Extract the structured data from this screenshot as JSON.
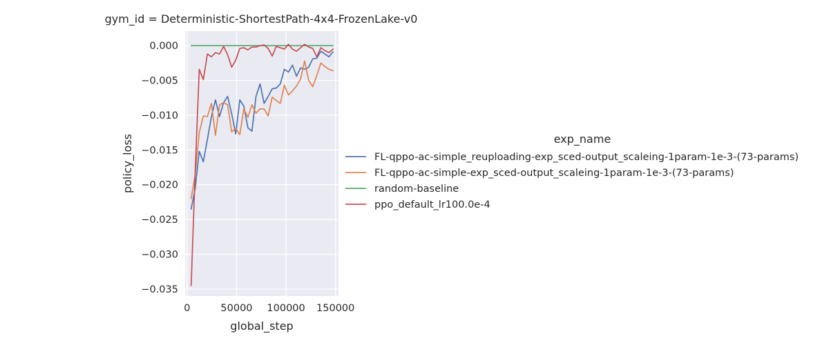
{
  "chart_data": {
    "type": "line",
    "title": "gym_id = Deterministic-ShortestPath-4x4-FrozenLake-v0",
    "xlabel": "global_step",
    "ylabel": "policy_loss",
    "xlim": [
      -2000,
      153000
    ],
    "ylim": [
      -0.036,
      0.0021
    ],
    "xticks": [
      0,
      50000,
      100000,
      150000
    ],
    "xtick_labels": [
      "0",
      "50000",
      "100000",
      "150000"
    ],
    "yticks": [
      0.0,
      -0.005,
      -0.01,
      -0.015,
      -0.02,
      -0.025,
      -0.03,
      -0.035
    ],
    "ytick_labels": [
      "0.000",
      "−0.005",
      "−0.010",
      "−0.015",
      "−0.020",
      "−0.025",
      "−0.030",
      "−0.035"
    ],
    "grid": true,
    "background": "#eaeaf2",
    "legend": {
      "title": "exp_name",
      "placement": "right, outside plot"
    },
    "series": [
      {
        "name": "FL-qppo-ac-simple_reuploading-exp_sced-output_scaleing-1param-1e-3-(73-params)",
        "color": "#4c72b0",
        "x": [
          4096,
          8192,
          12288,
          16384,
          20480,
          24576,
          28672,
          32768,
          36864,
          40960,
          45056,
          49152,
          53248,
          57344,
          61440,
          65536,
          69632,
          73728,
          77824,
          81920,
          86016,
          90112,
          94208,
          98304,
          102400,
          106496,
          110592,
          114688,
          118784,
          122880,
          126976,
          131072,
          135168,
          139264,
          143360,
          147456
        ],
        "y": [
          -0.0235,
          -0.0205,
          -0.0152,
          -0.0167,
          -0.0135,
          -0.0102,
          -0.0078,
          -0.0102,
          -0.0082,
          -0.0073,
          -0.0098,
          -0.0127,
          -0.0078,
          -0.0087,
          -0.0118,
          -0.0123,
          -0.0073,
          -0.0055,
          -0.0083,
          -0.0073,
          -0.0062,
          -0.0061,
          -0.0055,
          -0.0034,
          -0.0038,
          -0.0028,
          -0.0044,
          -0.0032,
          -0.0034,
          -0.0031,
          -0.0019,
          -0.0018,
          -0.0008,
          -0.0012,
          -0.0016,
          -0.0009
        ]
      },
      {
        "name": "FL-qppo-ac-simple-exp_sced-output_scaleing-1param-1e-3-(73-params)",
        "color": "#dd8452",
        "x": [
          4096,
          8192,
          12288,
          16384,
          20480,
          24576,
          28672,
          32768,
          36864,
          40960,
          45056,
          49152,
          53248,
          57344,
          61440,
          65536,
          69632,
          73728,
          77824,
          81920,
          86016,
          90112,
          94208,
          98304,
          102400,
          106496,
          110592,
          114688,
          118784,
          122880,
          126976,
          131072,
          135168,
          139264,
          143360,
          147456
        ],
        "y": [
          -0.022,
          -0.0185,
          -0.0125,
          -0.0101,
          -0.0102,
          -0.0083,
          -0.0129,
          -0.0085,
          -0.0082,
          -0.0085,
          -0.0124,
          -0.0119,
          -0.0128,
          -0.0091,
          -0.0103,
          -0.0085,
          -0.0097,
          -0.0091,
          -0.0091,
          -0.0101,
          -0.0074,
          -0.0079,
          -0.0083,
          -0.0057,
          -0.0071,
          -0.0065,
          -0.0058,
          -0.0048,
          -0.0022,
          -0.005,
          -0.0059,
          -0.0043,
          -0.0025,
          -0.003,
          -0.0034,
          -0.0036
        ]
      },
      {
        "name": "random-baseline",
        "color": "#55a868",
        "x": [
          4096,
          147456
        ],
        "y": [
          0.0,
          0.0
        ]
      },
      {
        "name": "ppo_default_lr100.0e-4",
        "color": "#c44e52",
        "x": [
          4096,
          8192,
          12288,
          16384,
          20480,
          24576,
          28672,
          32768,
          36864,
          40960,
          45056,
          49152,
          53248,
          57344,
          61440,
          65536,
          69632,
          73728,
          77824,
          81920,
          86016,
          90112,
          94208,
          98304,
          102400,
          106496,
          110592,
          114688,
          118784,
          122880,
          126976,
          131072,
          135168,
          139264,
          143360,
          147456
        ],
        "y": [
          -0.0345,
          -0.018,
          -0.0034,
          -0.0049,
          -0.0012,
          -0.0016,
          -0.001,
          -0.0012,
          -0.0001,
          -0.0013,
          -0.0031,
          -0.0021,
          -0.0004,
          -0.0003,
          -0.0006,
          -0.0002,
          -0.0002,
          0.0,
          0.0001,
          -0.0004,
          -0.0015,
          -0.0001,
          -0.0003,
          -0.0005,
          0.0002,
          -0.0005,
          -0.0008,
          -0.0003,
          0.0002,
          -0.0002,
          -0.0004,
          -0.0016,
          -0.0003,
          -0.0007,
          -0.001,
          -0.0005
        ]
      }
    ]
  }
}
